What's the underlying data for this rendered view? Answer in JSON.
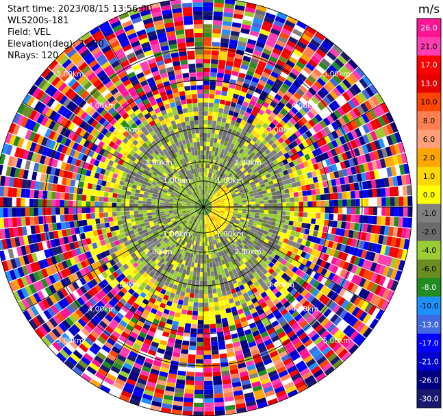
{
  "info": {
    "start_time": "Start time: 2023/08/15 13:56:00",
    "site": "WLS200s-181",
    "field": "Field: VEL",
    "elevation": "Elevation(deg): 35.30",
    "nrays": "NRays: 120"
  },
  "chart_data": {
    "type": "heatmap",
    "projection": "polar-ppi",
    "field": "VEL",
    "nrays": 120,
    "range_ring_labels": [
      "1.00km",
      "2.00km",
      "3.00km",
      "4.00km",
      "5.00km"
    ],
    "colorbar": {
      "unit": "m/s",
      "tick_labels": [
        "26.0",
        "21.0",
        "17.0",
        "13.0",
        "10.0",
        "8.0",
        "6.0",
        "2.0",
        "1.0",
        "0.0",
        "-1.0",
        "-2.0",
        "-4.0",
        "-6.0",
        "-8.0",
        "-10.0",
        "-13.0",
        "-17.0",
        "-21.0",
        "-26.0",
        "-30.0"
      ],
      "bins": [
        {
          "min": 26,
          "max": 30,
          "color": "#ff1493"
        },
        {
          "min": 21,
          "max": 26,
          "color": "#ff3cb0"
        },
        {
          "min": 17,
          "max": 21,
          "color": "#ff0000"
        },
        {
          "min": 13,
          "max": 17,
          "color": "#e80000"
        },
        {
          "min": 10,
          "max": 13,
          "color": "#ff4500"
        },
        {
          "min": 8,
          "max": 10,
          "color": "#ff7f50"
        },
        {
          "min": 6,
          "max": 8,
          "color": "#ffa07a"
        },
        {
          "min": 2,
          "max": 6,
          "color": "#ffa500"
        },
        {
          "min": 1,
          "max": 2,
          "color": "#ffd700"
        },
        {
          "min": 0,
          "max": 1,
          "color": "#ffff00"
        },
        {
          "min": -1,
          "max": 0,
          "color": "#808080"
        },
        {
          "min": -2,
          "max": -1,
          "color": "#6b6b6b"
        },
        {
          "min": -4,
          "max": -2,
          "color": "#9acd32"
        },
        {
          "min": -6,
          "max": -4,
          "color": "#6b8e23"
        },
        {
          "min": -8,
          "max": -6,
          "color": "#228b22"
        },
        {
          "min": -10,
          "max": -8,
          "color": "#1e90ff"
        },
        {
          "min": -13,
          "max": -10,
          "color": "#4169e1"
        },
        {
          "min": -17,
          "max": -13,
          "color": "#0000ff"
        },
        {
          "min": -21,
          "max": -17,
          "color": "#0000cd"
        },
        {
          "min": -26,
          "max": -21,
          "color": "#000080"
        },
        {
          "min": -30,
          "max": -26,
          "color": "#191970"
        }
      ]
    }
  }
}
